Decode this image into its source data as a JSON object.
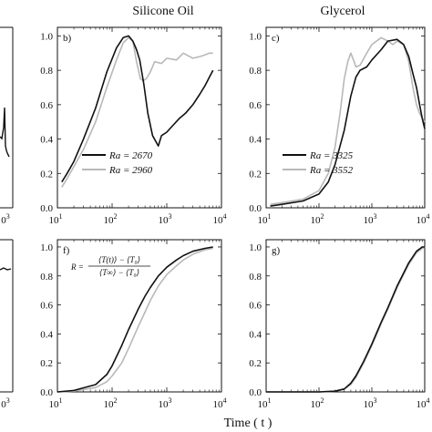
{
  "column_titles": {
    "middle": "Silicone Oil",
    "right": "Glycerol"
  },
  "x_axis_label": "Time ( t )",
  "formula": {
    "lhs": "R =",
    "numerator": "⟨T(t)⟩ − ⟨T₀⟩",
    "denominator": "⟨T∞⟩ − ⟨T₀⟩"
  },
  "colors": {
    "black_series": "#111111",
    "gray_series": "#b8b8b8"
  },
  "chart_data": [
    {
      "type": "line",
      "panel": "b)",
      "xscale": "log",
      "xlim": [
        10,
        10000
      ],
      "ylim": [
        0,
        1.05
      ],
      "yticks": [
        "0.0",
        "0.2",
        "0.4",
        "0.6",
        "0.8",
        "1.0"
      ],
      "xticks": [
        {
          "base": "10",
          "exp": "1"
        },
        {
          "base": "10",
          "exp": "2"
        },
        {
          "base": "10",
          "exp": "3"
        },
        {
          "base": "10",
          "exp": "4"
        }
      ],
      "legend": [
        {
          "label": "Ra = 2670",
          "color": "#111111"
        },
        {
          "label": "Ra = 2960",
          "color": "#b8b8b8"
        }
      ],
      "series": [
        {
          "color": "#b8b8b8",
          "x": [
            12,
            15,
            20,
            30,
            50,
            80,
            120,
            160,
            200,
            240,
            280,
            330,
            370,
            420,
            500,
            600,
            800,
            1000,
            1500,
            2000,
            3000,
            4000,
            5000,
            6000,
            7000
          ],
          "y": [
            0.12,
            0.17,
            0.24,
            0.34,
            0.5,
            0.7,
            0.86,
            0.96,
            0.99,
            0.97,
            0.85,
            0.75,
            0.74,
            0.75,
            0.79,
            0.85,
            0.84,
            0.87,
            0.86,
            0.9,
            0.87,
            0.88,
            0.89,
            0.9,
            0.9
          ]
        },
        {
          "color": "#111111",
          "x": [
            12,
            15,
            20,
            30,
            50,
            80,
            120,
            160,
            200,
            240,
            280,
            320,
            380,
            450,
            550,
            700,
            800,
            1000,
            1300,
            1700,
            2200,
            3000,
            4000,
            5000,
            6000,
            7000
          ],
          "y": [
            0.15,
            0.2,
            0.27,
            0.4,
            0.58,
            0.79,
            0.93,
            0.99,
            1.0,
            0.97,
            0.92,
            0.86,
            0.72,
            0.55,
            0.42,
            0.36,
            0.42,
            0.44,
            0.48,
            0.52,
            0.55,
            0.6,
            0.66,
            0.71,
            0.76,
            0.8
          ]
        }
      ]
    },
    {
      "type": "line",
      "panel": "c)",
      "xscale": "log",
      "xlim": [
        10,
        10000
      ],
      "ylim": [
        0,
        1.05
      ],
      "yticks": [
        "0.0",
        "0.2",
        "0.4",
        "0.6",
        "0.8",
        "1.0"
      ],
      "xticks": [
        {
          "base": "10",
          "exp": "1"
        },
        {
          "base": "10",
          "exp": "2"
        },
        {
          "base": "10",
          "exp": "3"
        },
        {
          "base": "10",
          "exp": "4"
        }
      ],
      "legend": [
        {
          "label": "Ra = 3325",
          "color": "#111111"
        },
        {
          "label": "Ra = 3552",
          "color": "#b8b8b8"
        }
      ],
      "series": [
        {
          "color": "#b8b8b8",
          "x": [
            12,
            20,
            50,
            100,
            150,
            200,
            250,
            300,
            350,
            400,
            450,
            500,
            600,
            800,
            1000,
            1500,
            2000,
            2500,
            3000,
            4000,
            5000,
            6000,
            7000,
            8000,
            9000,
            10000
          ],
          "y": [
            0.02,
            0.03,
            0.05,
            0.1,
            0.2,
            0.35,
            0.55,
            0.75,
            0.85,
            0.9,
            0.86,
            0.82,
            0.83,
            0.9,
            0.95,
            0.99,
            0.97,
            0.95,
            0.97,
            0.95,
            0.85,
            0.7,
            0.6,
            0.55,
            0.52,
            0.5
          ]
        },
        {
          "color": "#111111",
          "x": [
            12,
            20,
            50,
            100,
            150,
            200,
            300,
            400,
            500,
            600,
            800,
            1000,
            1500,
            2000,
            3000,
            4000,
            5000,
            6000,
            7000,
            8000,
            9000,
            10000
          ],
          "y": [
            0.01,
            0.02,
            0.04,
            0.08,
            0.15,
            0.25,
            0.45,
            0.65,
            0.76,
            0.8,
            0.82,
            0.86,
            0.92,
            0.97,
            0.98,
            0.95,
            0.88,
            0.78,
            0.7,
            0.6,
            0.52,
            0.46
          ]
        }
      ]
    },
    {
      "type": "line",
      "panel": "f)",
      "xscale": "log",
      "xlim": [
        10,
        10000
      ],
      "ylim": [
        0,
        1.05
      ],
      "yticks": [
        "0.0",
        "0.2",
        "0.4",
        "0.6",
        "0.8",
        "1.0"
      ],
      "xticks": [
        {
          "base": "10",
          "exp": "1"
        },
        {
          "base": "10",
          "exp": "2"
        },
        {
          "base": "10",
          "exp": "3"
        },
        {
          "base": "10",
          "exp": "4"
        }
      ],
      "series": [
        {
          "color": "#b8b8b8",
          "x": [
            10,
            20,
            50,
            80,
            100,
            150,
            200,
            300,
            400,
            500,
            700,
            1000,
            1500,
            2000,
            3000,
            5000,
            7000
          ],
          "y": [
            0.0,
            0.005,
            0.03,
            0.07,
            0.11,
            0.2,
            0.3,
            0.45,
            0.55,
            0.63,
            0.73,
            0.81,
            0.87,
            0.91,
            0.95,
            0.98,
            0.99
          ]
        },
        {
          "color": "#111111",
          "x": [
            10,
            20,
            50,
            80,
            100,
            150,
            200,
            300,
            400,
            500,
            700,
            1000,
            1500,
            2000,
            3000,
            5000,
            7000
          ],
          "y": [
            0.0,
            0.01,
            0.05,
            0.12,
            0.18,
            0.32,
            0.43,
            0.57,
            0.66,
            0.72,
            0.8,
            0.86,
            0.91,
            0.94,
            0.97,
            0.99,
            1.0
          ]
        }
      ]
    },
    {
      "type": "line",
      "panel": "g)",
      "xscale": "log",
      "xlim": [
        10,
        10000
      ],
      "ylim": [
        0,
        1.05
      ],
      "yticks": [
        "0.0",
        "0.2",
        "0.4",
        "0.6",
        "0.8",
        "1.0"
      ],
      "xticks": [
        {
          "base": "10",
          "exp": "1"
        },
        {
          "base": "10",
          "exp": "2"
        },
        {
          "base": "10",
          "exp": "3"
        },
        {
          "base": "10",
          "exp": "4"
        }
      ],
      "series": [
        {
          "color": "#b8b8b8",
          "x": [
            10,
            50,
            100,
            200,
            300,
            400,
            500,
            700,
            1000,
            1500,
            2000,
            3000,
            5000,
            7000,
            9000,
            10000
          ],
          "y": [
            0.0,
            0.0,
            0.0,
            0.005,
            0.02,
            0.05,
            0.1,
            0.2,
            0.32,
            0.47,
            0.57,
            0.72,
            0.88,
            0.96,
            0.99,
            1.0
          ]
        },
        {
          "color": "#111111",
          "x": [
            10,
            50,
            100,
            200,
            300,
            400,
            500,
            700,
            1000,
            1500,
            2000,
            3000,
            5000,
            7000,
            9000,
            10000
          ],
          "y": [
            0.0,
            0.0,
            0.0,
            0.005,
            0.02,
            0.06,
            0.11,
            0.21,
            0.33,
            0.48,
            0.58,
            0.73,
            0.89,
            0.97,
            1.0,
            1.0
          ]
        }
      ]
    },
    {
      "type": "line",
      "panel": "left-top",
      "xscale": "log",
      "xticks": [
        {
          "base": "0",
          "exp": "3"
        }
      ]
    },
    {
      "type": "line",
      "panel": "left-bottom",
      "xscale": "log",
      "xticks": [
        {
          "base": "0",
          "exp": "3"
        }
      ]
    }
  ]
}
